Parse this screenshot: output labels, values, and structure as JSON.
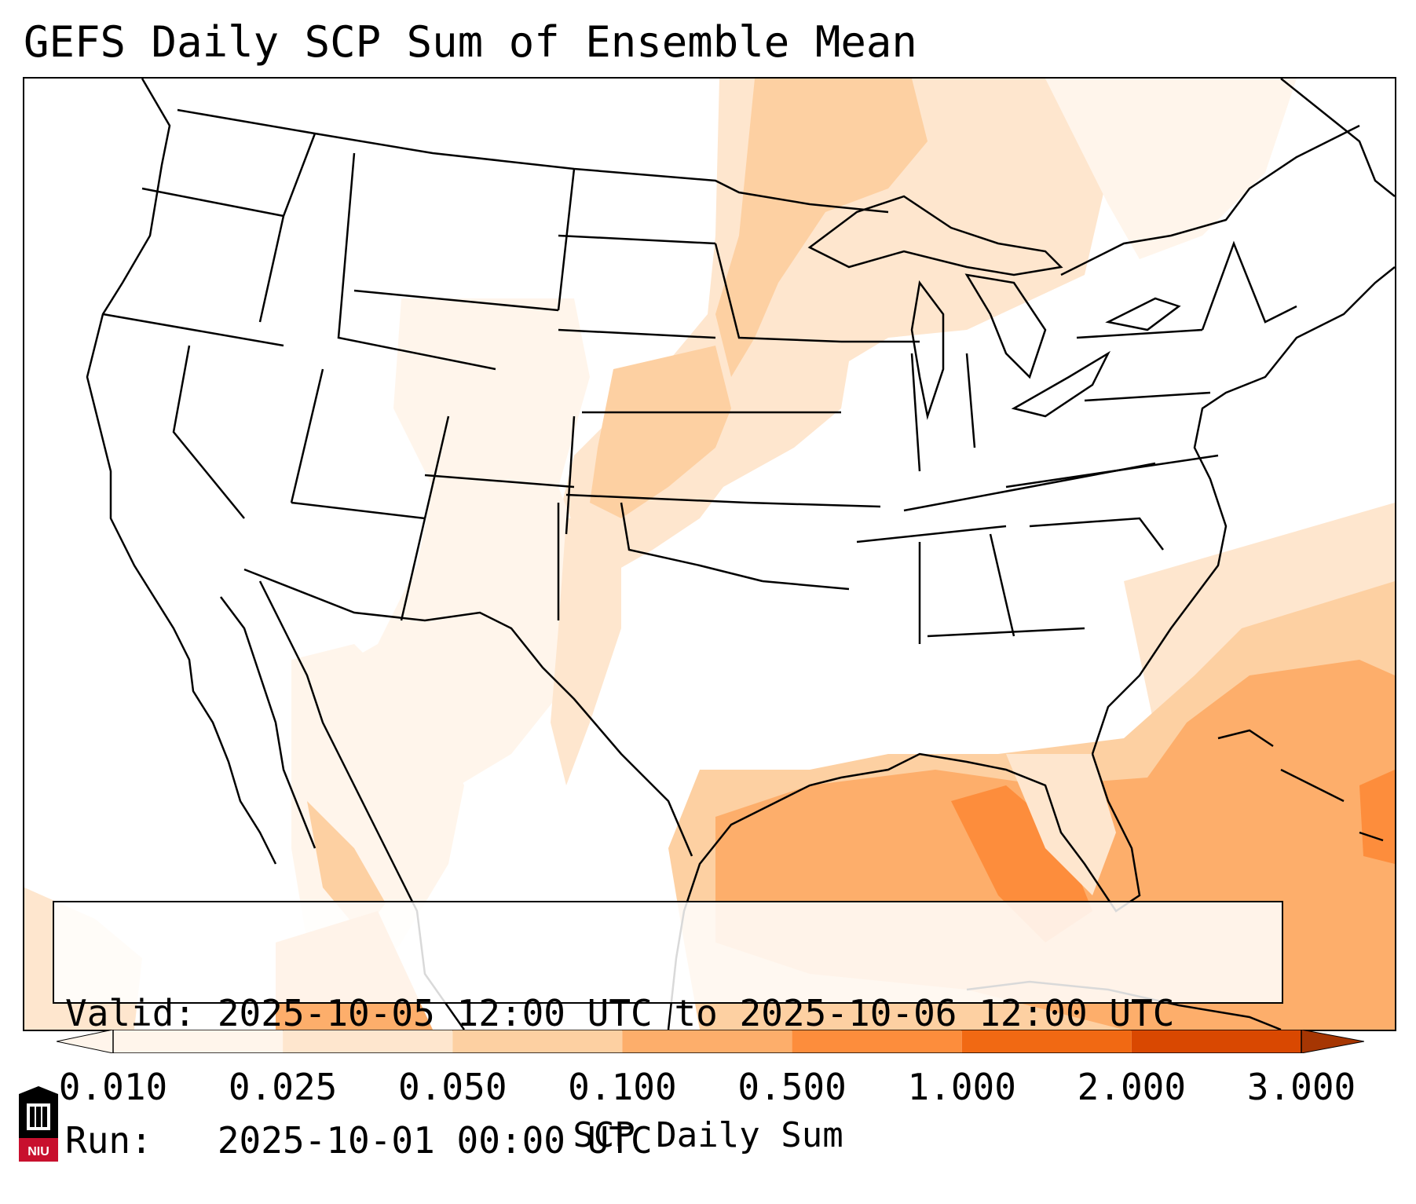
{
  "title": "GEFS Daily SCP Sum of Ensemble Mean",
  "info": {
    "valid_line": "Valid: 2025-10-05 12:00 UTC to 2025-10-06 12:00 UTC",
    "run_line": "Run:   2025-10-01 00:00 UTC"
  },
  "colorbar": {
    "label": "SCP Daily Sum",
    "ticks": [
      "0.010",
      "0.025",
      "0.050",
      "0.100",
      "0.500",
      "1.000",
      "2.000",
      "3.000"
    ],
    "colors": [
      "#fff5eb",
      "#fee6ce",
      "#fdd0a2",
      "#fdae6b",
      "#fd8d3c",
      "#f16913",
      "#d94801",
      "#a63603"
    ],
    "extend": "both"
  },
  "logo": {
    "text": "NIU",
    "color": "#c8102e"
  },
  "map": {
    "region": "CONUS",
    "outline_color": "#000000",
    "fill_colors": {
      "very_light": "#fff5eb",
      "light": "#fee6ce",
      "medium": "#fdd0a2",
      "strong": "#fdae6b",
      "strongest": "#fd8d3c"
    }
  }
}
